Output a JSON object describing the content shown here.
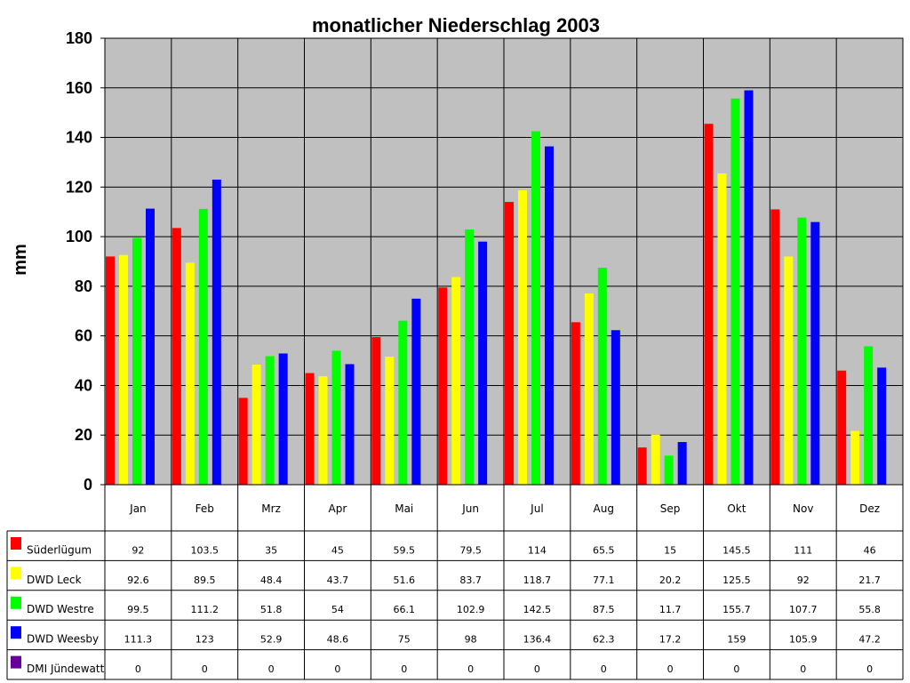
{
  "chart_data": {
    "type": "bar",
    "title": "monatlicher Niederschlag 2003",
    "ylabel": "mm",
    "xlabel": "",
    "ylim": [
      0,
      180
    ],
    "yticks": [
      0,
      20,
      40,
      60,
      80,
      100,
      120,
      140,
      160,
      180
    ],
    "grid": true,
    "legend": "data-table-below",
    "categories": [
      "Jan",
      "Feb",
      "Mrz",
      "Apr",
      "Mai",
      "Jun",
      "Jul",
      "Aug",
      "Sep",
      "Okt",
      "Nov",
      "Dez"
    ],
    "series": [
      {
        "name": "Süderlügum",
        "color": "#ff0000",
        "values": [
          92,
          103.5,
          35,
          45,
          59.5,
          79.5,
          114,
          65.5,
          15,
          145.5,
          111,
          46
        ]
      },
      {
        "name": "DWD Leck",
        "color": "#ffff00",
        "values": [
          92.6,
          89.5,
          48.4,
          43.7,
          51.6,
          83.7,
          118.7,
          77.1,
          20.2,
          125.5,
          92,
          21.7
        ]
      },
      {
        "name": "DWD Westre",
        "color": "#00ff00",
        "values": [
          99.5,
          111.2,
          51.8,
          54,
          66.1,
          102.9,
          142.5,
          87.5,
          11.7,
          155.7,
          107.7,
          55.8
        ]
      },
      {
        "name": "DWD Weesby",
        "color": "#0000ff",
        "values": [
          111.3,
          123,
          52.9,
          48.6,
          75,
          98,
          136.4,
          62.3,
          17.2,
          159,
          105.9,
          47.2
        ]
      },
      {
        "name": "DMI Jündewatt",
        "color": "#660099",
        "values": [
          0,
          0,
          0,
          0,
          0,
          0,
          0,
          0,
          0,
          0,
          0,
          0
        ]
      }
    ],
    "colors": {
      "plot_background": "#c0c0c0",
      "gridline": "#000000"
    }
  }
}
